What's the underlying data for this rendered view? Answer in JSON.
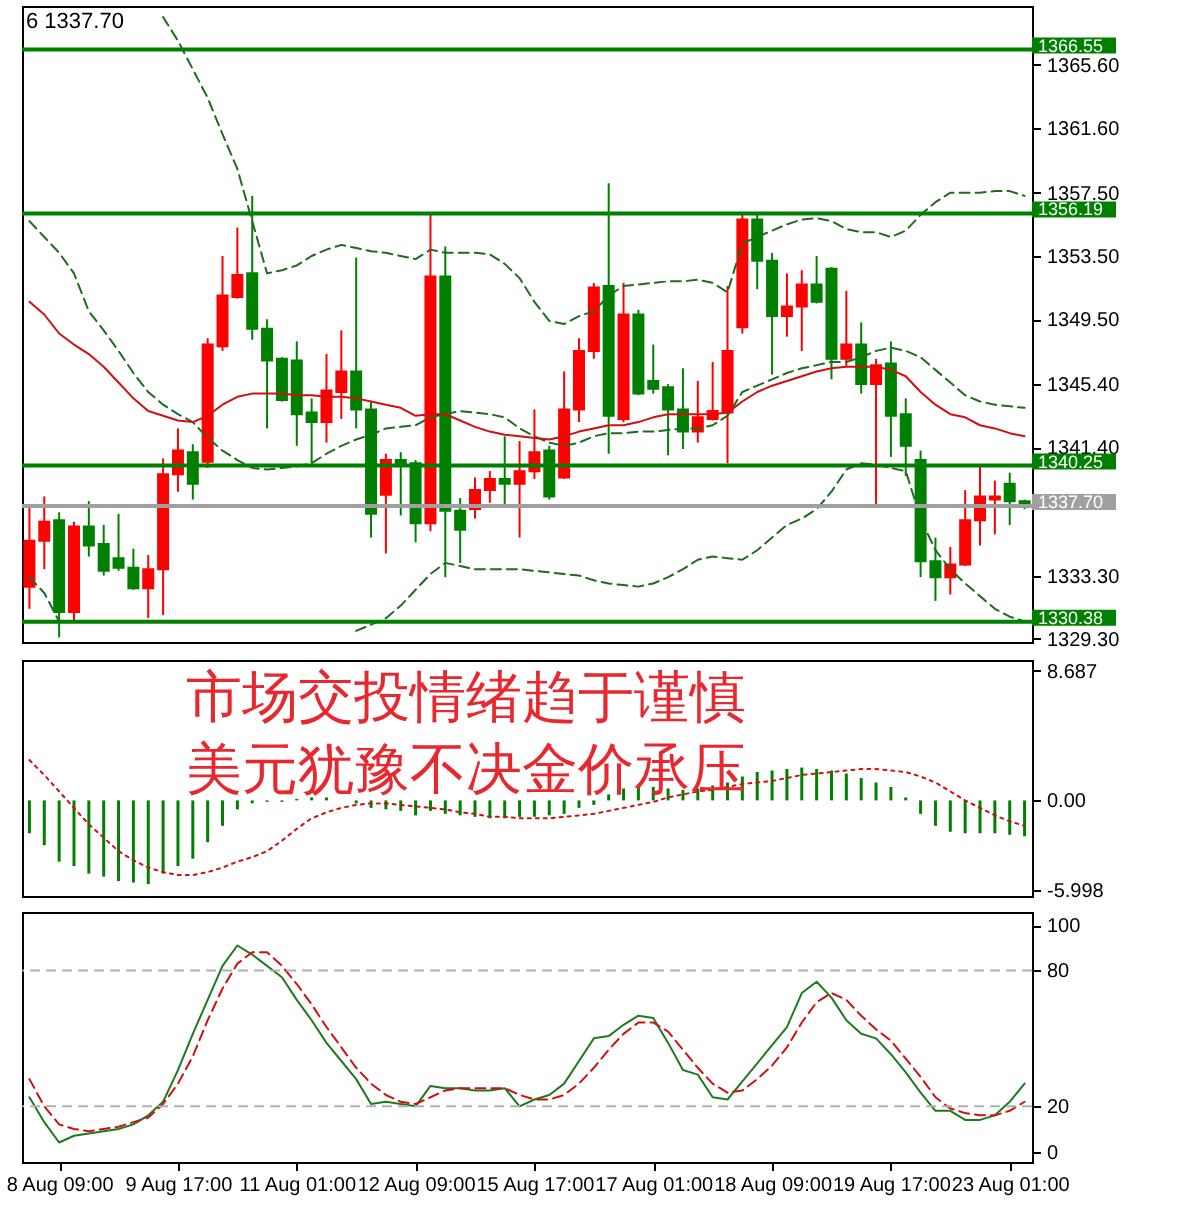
{
  "chart_data": [
    {
      "type": "candlestick",
      "annotations": [
        "6 1337.70"
      ],
      "categories": [
        null,
        null,
        null,
        null,
        null,
        null,
        null,
        null,
        null,
        null,
        null,
        null,
        null,
        null,
        null,
        null,
        null,
        null,
        null,
        null,
        null,
        null,
        null,
        null,
        null,
        null,
        null,
        null,
        null,
        null,
        null,
        null,
        null,
        null,
        null,
        null,
        null,
        null,
        null,
        null,
        null,
        null,
        null,
        null,
        null,
        null,
        null,
        null,
        null,
        null,
        null,
        null,
        null,
        null,
        null,
        null,
        null,
        null,
        null,
        null,
        null,
        null,
        null,
        null,
        null,
        null,
        null,
        null
      ],
      "ohlc": [
        [
          1332.6,
          1337.7,
          1331.2,
          1335.5
        ],
        [
          1335.5,
          1338.3,
          1333.7,
          1336.7
        ],
        [
          1336.8,
          1337.3,
          1329.4,
          1331.0
        ],
        [
          1331.0,
          1336.7,
          1330.4,
          1336.4
        ],
        [
          1336.4,
          1338.0,
          1334.5,
          1335.2
        ],
        [
          1335.3,
          1336.5,
          1333.3,
          1333.6
        ],
        [
          1334.4,
          1337.2,
          1333.6,
          1333.8
        ],
        [
          1333.8,
          1335.0,
          1332.4,
          1332.5
        ],
        [
          1332.5,
          1334.6,
          1330.6,
          1333.7
        ],
        [
          1333.7,
          1340.7,
          1330.8,
          1339.7
        ],
        [
          1339.7,
          1342.6,
          1338.6,
          1341.2
        ],
        [
          1341.1,
          1341.6,
          1338.1,
          1339.1
        ],
        [
          1340.5,
          1348.3,
          1340.1,
          1347.9
        ],
        [
          1347.8,
          1353.5,
          1347.5,
          1351.0
        ],
        [
          1350.9,
          1355.3,
          1350.8,
          1352.3
        ],
        [
          1352.4,
          1357.3,
          1348.2,
          1348.9
        ],
        [
          1348.9,
          1349.5,
          1342.6,
          1346.9
        ],
        [
          1347.0,
          1347.1,
          1344.3,
          1344.4
        ],
        [
          1346.9,
          1348.1,
          1341.5,
          1343.5
        ],
        [
          1343.6,
          1344.5,
          1340.4,
          1343.0
        ],
        [
          1343.0,
          1347.3,
          1341.7,
          1345.0
        ],
        [
          1344.9,
          1348.8,
          1343.2,
          1346.2
        ],
        [
          1346.2,
          1353.4,
          1342.6,
          1343.8
        ],
        [
          1343.8,
          1344.3,
          1335.7,
          1337.2
        ],
        [
          1338.4,
          1341.0,
          1334.7,
          1340.6
        ],
        [
          1340.6,
          1341.1,
          1337.1,
          1340.3
        ],
        [
          1340.4,
          1340.6,
          1335.4,
          1336.6
        ],
        [
          1336.6,
          1356.2,
          1336.1,
          1352.2
        ],
        [
          1352.2,
          1354.1,
          1333.2,
          1337.4
        ],
        [
          1337.4,
          1338.2,
          1334.1,
          1336.2
        ],
        [
          1337.5,
          1339.5,
          1336.9,
          1338.7
        ],
        [
          1338.7,
          1339.9,
          1337.9,
          1339.4
        ],
        [
          1339.4,
          1342.1,
          1337.7,
          1339.1
        ],
        [
          1339.1,
          1341.8,
          1335.7,
          1339.9
        ],
        [
          1339.9,
          1343.8,
          1339.4,
          1341.1
        ],
        [
          1341.2,
          1341.5,
          1338.1,
          1338.3
        ],
        [
          1339.5,
          1346.2,
          1339.4,
          1343.8
        ],
        [
          1343.8,
          1348.3,
          1343.0,
          1347.5
        ],
        [
          1347.5,
          1351.8,
          1347.0,
          1351.5
        ],
        [
          1351.6,
          1358.1,
          1341.0,
          1343.4
        ],
        [
          1343.2,
          1351.8,
          1343.0,
          1349.8
        ],
        [
          1349.8,
          1350.1,
          1344.7,
          1344.8
        ],
        [
          1345.6,
          1347.9,
          1344.8,
          1345.1
        ],
        [
          1345.2,
          1345.4,
          1340.9,
          1343.8
        ],
        [
          1343.8,
          1346.4,
          1341.3,
          1342.4
        ],
        [
          1342.4,
          1345.6,
          1341.7,
          1343.3
        ],
        [
          1343.2,
          1346.8,
          1343.1,
          1343.7
        ],
        [
          1343.6,
          1351.6,
          1340.4,
          1347.5
        ],
        [
          1349.0,
          1356.1,
          1348.6,
          1355.8
        ],
        [
          1355.8,
          1356.1,
          1351.4,
          1353.2
        ],
        [
          1353.2,
          1353.7,
          1346.0,
          1349.7
        ],
        [
          1349.7,
          1352.4,
          1348.4,
          1350.3
        ],
        [
          1350.3,
          1352.6,
          1347.5,
          1351.7
        ],
        [
          1351.7,
          1353.5,
          1350.5,
          1350.6
        ],
        [
          1352.7,
          1352.8,
          1345.7,
          1347.0
        ],
        [
          1347.0,
          1351.3,
          1346.5,
          1347.9
        ],
        [
          1347.9,
          1349.3,
          1344.8,
          1345.4
        ],
        [
          1345.4,
          1347.0,
          1337.7,
          1346.6
        ],
        [
          1346.7,
          1348.1,
          1340.8,
          1343.4
        ],
        [
          1343.5,
          1344.5,
          1339.6,
          1341.5
        ],
        [
          1340.6,
          1341.2,
          1333.2,
          1334.2
        ],
        [
          1334.2,
          1335.7,
          1331.7,
          1333.2
        ],
        [
          1333.2,
          1335.1,
          1332.1,
          1334.0
        ],
        [
          1334.0,
          1338.7,
          1333.9,
          1336.8
        ],
        [
          1336.8,
          1340.3,
          1335.2,
          1338.3
        ],
        [
          1338.1,
          1339.3,
          1335.9,
          1338.3
        ],
        [
          1339.1,
          1339.8,
          1336.5,
          1338.0
        ],
        [
          1338.0,
          1338.1,
          1337.5,
          1337.7
        ]
      ],
      "colors": [
        "#ff0000",
        "#ff0000",
        "#008000",
        "#ff0000",
        "#008000",
        "#008000",
        "#008000",
        "#008000",
        "#ff0000",
        "#ff0000",
        "#ff0000",
        "#008000",
        "#ff0000",
        "#ff0000",
        "#ff0000",
        "#008000",
        "#008000",
        "#008000",
        "#008000",
        "#008000",
        "#ff0000",
        "#ff0000",
        "#008000",
        "#008000",
        "#ff0000",
        "#008000",
        "#008000",
        "#ff0000",
        "#008000",
        "#008000",
        "#ff0000",
        "#ff0000",
        "#008000",
        "#ff0000",
        "#ff0000",
        "#008000",
        "#ff0000",
        "#ff0000",
        "#ff0000",
        "#008000",
        "#ff0000",
        "#008000",
        "#008000",
        "#008000",
        "#008000",
        "#ff0000",
        "#ff0000",
        "#ff0000",
        "#ff0000",
        "#008000",
        "#008000",
        "#ff0000",
        "#ff0000",
        "#008000",
        "#008000",
        "#ff0000",
        "#008000",
        "#ff0000",
        "#008000",
        "#008000",
        "#008000",
        "#008000",
        "#ff0000",
        "#ff0000",
        "#ff0000",
        "#ff0000",
        "#008000",
        "#008000"
      ],
      "series": [
        {
          "type": "line",
          "color": "#1f6b1f",
          "line_style": "dashed",
          "values": [
            null,
            null,
            null,
            null,
            null,
            null,
            null,
            null,
            null,
            1368.6,
            1367.1,
            1365.3,
            1363.5,
            1361.2,
            1359.0,
            1355.7,
            1352.4,
            1352.6,
            1352.9,
            1353.5,
            1353.9,
            1354.2,
            1354.0,
            1353.8,
            1353.7,
            1353.5,
            1353.3,
            1353.9,
            1353.7,
            1353.7,
            1353.7,
            1353.6,
            1353.0,
            1352.1,
            1350.6,
            1349.4,
            1349.2,
            1349.7,
            1350.0,
            1351.0,
            1351.6,
            1351.7,
            1351.8,
            1351.9,
            1351.9,
            1352.0,
            1351.8,
            1351.2,
            1354.3,
            1354.7,
            1355.1,
            1355.5,
            1355.8,
            1355.9,
            1355.7,
            1355.2,
            1355.0,
            1355.0,
            1354.7,
            1355.1,
            1356.1,
            1356.9,
            1357.5,
            1357.5,
            1357.5,
            1357.6,
            1357.6,
            1357.3
          ]
        },
        {
          "type": "line",
          "color": "#1f6b1f",
          "line_style": "dashed",
          "values": [
            1355.7,
            1354.7,
            1353.7,
            1352.4,
            1350.0,
            1348.8,
            1347.5,
            1346.1,
            1344.9,
            1344.1,
            1343.5,
            1343.0,
            1342.0,
            1341.2,
            1340.6,
            1340.1,
            1340.0,
            1340.1,
            1340.2,
            1340.4,
            1341.0,
            1341.5,
            1341.9,
            1342.2,
            1342.6,
            1342.7,
            1342.8,
            1343.3,
            1343.5,
            1343.7,
            1343.6,
            1343.5,
            1343.3,
            1342.6,
            1342.1,
            1341.7,
            1341.5,
            1341.7,
            1342.1,
            1342.3,
            1342.3,
            1342.4,
            1342.4,
            1342.5,
            1342.6,
            1342.6,
            1342.8,
            1343.4,
            1344.9,
            1345.3,
            1345.7,
            1346.1,
            1346.4,
            1346.6,
            1346.8,
            1346.8,
            1347.1,
            1347.5,
            1347.7,
            1347.5,
            1347.1,
            1346.3,
            1345.5,
            1344.7,
            1344.3,
            1344.1,
            1344.0,
            1343.9
          ]
        },
        {
          "type": "line",
          "color": "#1f6b1f",
          "line_style": "dashed",
          "values": [
            1333.2,
            1332.2,
            1330.4,
            null,
            null,
            null,
            null,
            null,
            null,
            null,
            null,
            null,
            null,
            null,
            null,
            null,
            null,
            null,
            null,
            null,
            null,
            null,
            1329.8,
            1330.2,
            1330.6,
            1331.4,
            1332.4,
            1333.4,
            1334.1,
            1333.9,
            1333.7,
            1333.7,
            1333.7,
            1333.7,
            1333.6,
            1333.5,
            1333.4,
            1333.3,
            1333.0,
            1332.8,
            1332.7,
            1332.6,
            1332.8,
            1333.2,
            1333.7,
            1334.3,
            1334.5,
            1334.4,
            1334.3,
            1334.9,
            1335.7,
            1336.5,
            1336.9,
            1337.5,
            1338.6,
            1340.0,
            1340.4,
            1340.3,
            1340.1,
            1339.9,
            1336.9,
            1334.9,
            1333.7,
            1332.8,
            1332.0,
            1331.2,
            1330.7,
            1330.4
          ]
        },
        {
          "type": "line",
          "color": "#d01010",
          "line_style": "solid",
          "values": [
            1350.6,
            1349.8,
            1348.6,
            1347.9,
            1347.3,
            1346.5,
            1345.5,
            1344.5,
            1343.7,
            1343.4,
            1343.1,
            1343.0,
            1343.4,
            1344.1,
            1344.6,
            1344.8,
            1344.8,
            1344.8,
            1344.7,
            1344.7,
            1344.6,
            1344.6,
            1344.5,
            1344.3,
            1344.1,
            1343.9,
            1343.4,
            1343.5,
            1343.5,
            1343.1,
            1342.7,
            1342.4,
            1342.2,
            1342.1,
            1342.0,
            1341.9,
            1342.1,
            1342.4,
            1342.6,
            1342.8,
            1342.8,
            1343.0,
            1343.3,
            1343.5,
            1343.5,
            1343.5,
            1343.5,
            1343.6,
            1344.3,
            1344.9,
            1345.3,
            1345.6,
            1345.9,
            1346.2,
            1346.4,
            1346.5,
            1346.5,
            1346.5,
            1346.3,
            1345.9,
            1344.9,
            1344.1,
            1343.5,
            1343.3,
            1342.8,
            1342.6,
            1342.3,
            1342.1
          ]
        }
      ],
      "ylim": [
        1329.1,
        1369.3
      ],
      "yticks": [
        {
          "value": 1365.6,
          "label": "1365.60"
        },
        {
          "value": 1361.6,
          "label": "1361.60"
        },
        {
          "value": 1357.5,
          "label": "1357.50"
        },
        {
          "value": 1353.5,
          "label": "1353.50"
        },
        {
          "value": 1349.5,
          "label": "1349.50"
        },
        {
          "value": 1345.4,
          "label": "1345.40"
        },
        {
          "value": 1341.4,
          "label": "1341.40"
        },
        {
          "value": 1333.3,
          "label": "1333.30"
        },
        {
          "value": 1329.3,
          "label": "1329.30"
        }
      ],
      "ref_lines": [
        {
          "axis": "y",
          "value": 1366.55,
          "label": "1366.55",
          "color": "#008000"
        },
        {
          "axis": "y",
          "value": 1356.19,
          "label": "1356.19",
          "color": "#008000"
        },
        {
          "axis": "y",
          "value": 1340.25,
          "label": "1340.25",
          "color": "#008000"
        },
        {
          "axis": "y",
          "value": 1330.38,
          "label": "1330.38",
          "color": "#008000"
        },
        {
          "axis": "y",
          "value": 1337.7,
          "label": "1337.70",
          "color": "#a0a0a0"
        }
      ],
      "tick_labels": "y"
    },
    {
      "type": "bar",
      "annotations": [
        "市场交投情绪趋于谨慎",
        "美元犹豫不决金价承压"
      ],
      "categories": [
        null,
        null,
        null,
        null,
        null,
        null,
        null,
        null,
        null,
        null,
        null,
        null,
        null,
        null,
        null,
        null,
        null,
        null,
        null,
        null,
        null,
        null,
        null,
        null,
        null,
        null,
        null,
        null,
        null,
        null,
        null,
        null,
        null,
        null,
        null,
        null,
        null,
        null,
        null,
        null,
        null,
        null,
        null,
        null,
        null,
        null,
        null,
        null,
        null,
        null,
        null,
        null,
        null,
        null,
        null,
        null,
        null,
        null,
        null,
        null,
        null,
        null,
        null,
        null,
        null,
        null,
        null,
        null
      ],
      "series": [
        {
          "color": "#008000",
          "values": [
            -2.2,
            -3.0,
            -4.1,
            -4.4,
            -4.9,
            -5.1,
            -5.4,
            -5.5,
            -5.6,
            -4.9,
            -4.4,
            -3.9,
            -2.8,
            -1.7,
            -0.6,
            -0.2,
            -0.1,
            -0.1,
            0.1,
            0.2,
            0.2,
            0.0,
            -0.2,
            -0.5,
            -0.6,
            -0.7,
            -1.0,
            -0.7,
            -0.9,
            -1.0,
            -1.1,
            -1.2,
            -1.2,
            -1.1,
            -1.1,
            -1.0,
            -0.9,
            -0.5,
            -0.3,
            0.4,
            0.8,
            0.9,
            0.9,
            0.8,
            0.7,
            0.8,
            1.0,
            1.2,
            1.6,
            1.9,
            2.0,
            2.1,
            2.2,
            2.1,
            2.0,
            1.8,
            1.5,
            1.2,
            0.9,
            0.2,
            -0.9,
            -1.7,
            -2.1,
            -2.2,
            -2.2,
            -2.2,
            -2.3,
            -2.4
          ]
        },
        {
          "type": "line",
          "color": "#d01010",
          "line_style": "dotted",
          "values": [
            2.7,
            1.7,
            0.6,
            -0.5,
            -1.6,
            -2.5,
            -3.4,
            -4.0,
            -4.5,
            -4.8,
            -5.0,
            -5.0,
            -4.8,
            -4.5,
            -4.1,
            -3.8,
            -3.4,
            -2.7,
            -1.9,
            -1.2,
            -0.8,
            -0.5,
            -0.3,
            -0.2,
            -0.2,
            -0.3,
            -0.4,
            -0.5,
            -0.6,
            -0.8,
            -0.9,
            -1.1,
            -1.1,
            -1.2,
            -1.2,
            -1.2,
            -1.1,
            -1.0,
            -0.9,
            -0.7,
            -0.5,
            -0.3,
            -0.1,
            0.2,
            0.4,
            0.6,
            0.7,
            0.9,
            1.1,
            1.2,
            1.3,
            1.5,
            1.7,
            1.8,
            1.9,
            2.0,
            2.1,
            2.1,
            2.0,
            1.9,
            1.6,
            1.2,
            0.6,
            0.0,
            -0.5,
            -1.0,
            -1.4,
            -1.7
          ]
        }
      ],
      "ylim": [
        -6.4,
        9.4
      ],
      "yticks": [
        8.687,
        {
          "value": 0,
          "label": "0.00"
        },
        -5.998
      ],
      "tick_labels": "y"
    },
    {
      "type": "line",
      "categories": [
        null,
        null,
        "8 Aug 09:00",
        null,
        null,
        null,
        null,
        null,
        null,
        null,
        "9 Aug 17:00",
        null,
        null,
        null,
        null,
        null,
        null,
        null,
        "11 Aug 01:00",
        null,
        null,
        null,
        null,
        null,
        null,
        null,
        "12 Aug 09:00",
        null,
        null,
        null,
        null,
        null,
        null,
        null,
        "15 Aug 17:00",
        null,
        null,
        null,
        null,
        null,
        null,
        null,
        "17 Aug 01:00",
        null,
        null,
        null,
        null,
        null,
        null,
        null,
        "18 Aug 09:00",
        null,
        null,
        null,
        null,
        null,
        null,
        null,
        "19 Aug 17:00",
        null,
        null,
        null,
        null,
        null,
        null,
        null,
        "23 Aug 01:00",
        null
      ],
      "series": [
        {
          "color": "#1f7a1f",
          "line_style": "solid",
          "values": [
            24,
            13,
            4,
            7,
            8,
            9,
            10,
            12,
            16,
            22,
            36,
            52,
            67,
            82,
            91,
            87,
            82,
            77,
            67,
            58,
            48,
            40,
            32,
            21,
            22,
            21,
            20,
            29,
            28,
            28,
            27,
            27,
            28,
            20,
            23,
            25,
            30,
            40,
            50,
            51,
            56,
            60,
            59,
            48,
            36,
            34,
            24,
            23,
            31,
            39,
            47,
            55,
            70,
            75,
            68,
            58,
            52,
            50,
            43,
            35,
            26,
            18,
            18,
            14,
            14,
            16,
            22,
            30
          ]
        },
        {
          "color": "#d01010",
          "line_style": "dashed",
          "values": [
            32,
            20,
            12,
            10,
            9,
            10,
            11,
            13,
            15,
            21,
            30,
            42,
            58,
            72,
            83,
            88,
            88,
            82,
            74,
            65,
            55,
            46,
            37,
            30,
            25,
            22,
            21,
            24,
            27,
            28,
            28,
            28,
            28,
            25,
            23,
            23,
            25,
            30,
            37,
            45,
            52,
            57,
            57,
            53,
            45,
            37,
            30,
            26,
            27,
            32,
            38,
            46,
            57,
            66,
            70,
            67,
            60,
            54,
            49,
            41,
            33,
            24,
            19,
            17,
            16,
            16,
            18,
            22
          ]
        }
      ],
      "ylim": [
        -4.6,
        105.8
      ],
      "yticks": [
        0,
        20,
        80,
        100
      ],
      "ref_lines": [
        {
          "axis": "y",
          "value": 80,
          "color": "#b0b0b0",
          "line_style": "dashed"
        },
        {
          "axis": "y",
          "value": 20,
          "color": "#b0b0b0",
          "line_style": "dashed"
        }
      ]
    }
  ]
}
